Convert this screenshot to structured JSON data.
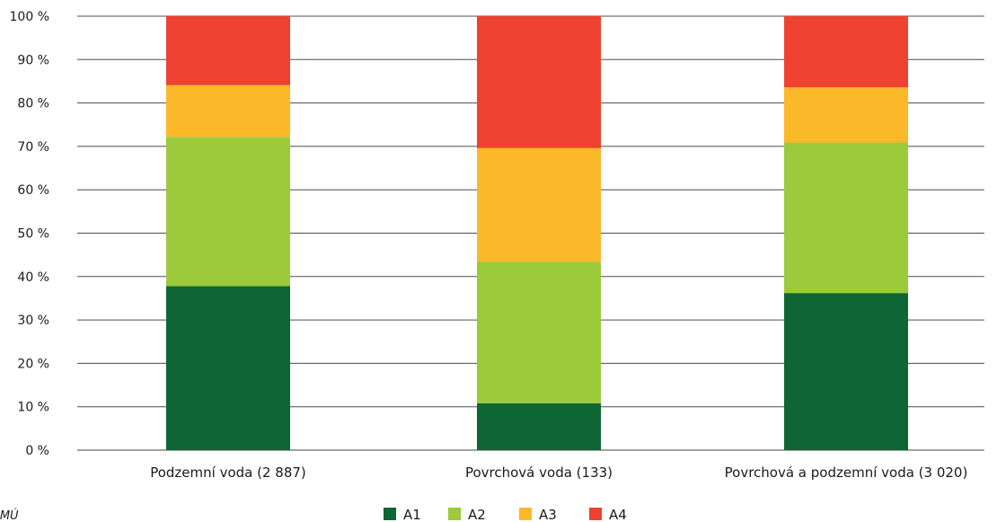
{
  "source_text": "IMÚ",
  "chart_data": {
    "type": "bar",
    "stacked": true,
    "orientation": "vertical",
    "categories": [
      "Podzemní voda (2 887)",
      "Povrchová voda (133)",
      "Povrchová a podzemní voda (3 020)"
    ],
    "series": [
      {
        "name": "A1",
        "color": "#0e6634",
        "values": [
          37.8,
          10.8,
          36.2
        ]
      },
      {
        "name": "A2",
        "color": "#9bca3b",
        "values": [
          34.4,
          32.6,
          34.7
        ]
      },
      {
        "name": "A3",
        "color": "#fbb829",
        "values": [
          11.9,
          26.2,
          12.7
        ]
      },
      {
        "name": "A4",
        "color": "#ef4130",
        "values": [
          15.9,
          30.4,
          16.4
        ]
      }
    ],
    "yticks": [
      "0 %",
      "10 %",
      "20 %",
      "30 %",
      "40 %",
      "50 %",
      "60 %",
      "70 %",
      "80 %",
      "90 %",
      "100 %"
    ],
    "ylim": [
      0,
      100
    ],
    "grid": true,
    "legend_position": "bottom"
  }
}
